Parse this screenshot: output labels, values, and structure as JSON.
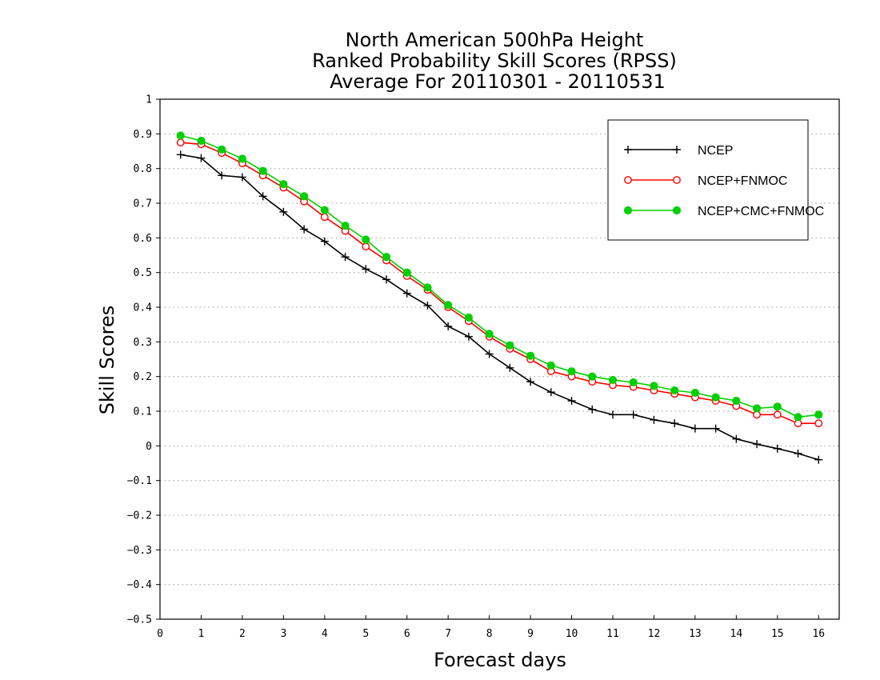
{
  "chart_data": {
    "type": "line",
    "title": [
      "North American 500hPa Height",
      "Ranked Probability Skill Scores (RPSS)",
      "Average For 20110301 - 20110531"
    ],
    "xlabel": "Forecast days",
    "ylabel": "Skill Scores",
    "xlim": [
      0,
      16.5
    ],
    "ylim": [
      -0.5,
      1
    ],
    "xticks": [
      0,
      1,
      2,
      3,
      4,
      5,
      6,
      7,
      8,
      9,
      10,
      11,
      12,
      13,
      14,
      15,
      16
    ],
    "yticks": [
      1,
      0.9,
      0.8,
      0.7,
      0.6,
      0.5,
      0.4,
      0.3,
      0.2,
      0.1,
      0,
      -0.1,
      -0.2,
      -0.3,
      -0.4,
      -0.5
    ],
    "ytick_labels": [
      "1",
      "0.9",
      "0.8",
      "0.7",
      "0.6",
      "0.5",
      "0.4",
      "0.3",
      "0.2",
      "0.1",
      "0",
      "−0.1",
      "−0.2",
      "−0.3",
      "−0.4",
      "−0.5"
    ],
    "grid": "horizontal dotted",
    "legend_position": "top-right",
    "x": [
      0.5,
      1,
      1.5,
      2,
      2.5,
      3,
      3.5,
      4,
      4.5,
      5,
      5.5,
      6,
      6.5,
      7,
      7.5,
      8,
      8.5,
      9,
      9.5,
      10,
      10.5,
      11,
      11.5,
      12,
      12.5,
      13,
      13.5,
      14,
      14.5,
      15,
      15.5,
      16
    ],
    "series": [
      {
        "name": "NCEP",
        "color": "#000000",
        "marker": "plus",
        "values": [
          0.84,
          0.83,
          0.78,
          0.775,
          0.72,
          0.675,
          0.625,
          0.59,
          0.545,
          0.51,
          0.48,
          0.44,
          0.405,
          0.345,
          0.315,
          0.265,
          0.225,
          0.185,
          0.155,
          0.13,
          0.105,
          0.09,
          0.09,
          0.075,
          0.065,
          0.05,
          0.05,
          0.02,
          0.005,
          -0.008,
          -0.022,
          -0.04
        ]
      },
      {
        "name": "NCEP+FNMOC",
        "color": "#ff0000",
        "marker": "open-circle",
        "values": [
          0.875,
          0.87,
          0.845,
          0.815,
          0.78,
          0.745,
          0.705,
          0.66,
          0.62,
          0.575,
          0.535,
          0.49,
          0.45,
          0.4,
          0.36,
          0.315,
          0.28,
          0.25,
          0.215,
          0.2,
          0.185,
          0.175,
          0.17,
          0.16,
          0.15,
          0.14,
          0.13,
          0.115,
          0.09,
          0.09,
          0.065,
          0.065
        ]
      },
      {
        "name": "NCEP+CMC+FNMOC",
        "color": "#00d000",
        "marker": "filled-circle",
        "values": [
          0.895,
          0.88,
          0.855,
          0.828,
          0.793,
          0.755,
          0.72,
          0.68,
          0.635,
          0.595,
          0.545,
          0.5,
          0.457,
          0.406,
          0.37,
          0.323,
          0.29,
          0.26,
          0.232,
          0.215,
          0.2,
          0.19,
          0.183,
          0.173,
          0.16,
          0.153,
          0.14,
          0.13,
          0.108,
          0.113,
          0.083,
          0.09
        ]
      }
    ]
  }
}
